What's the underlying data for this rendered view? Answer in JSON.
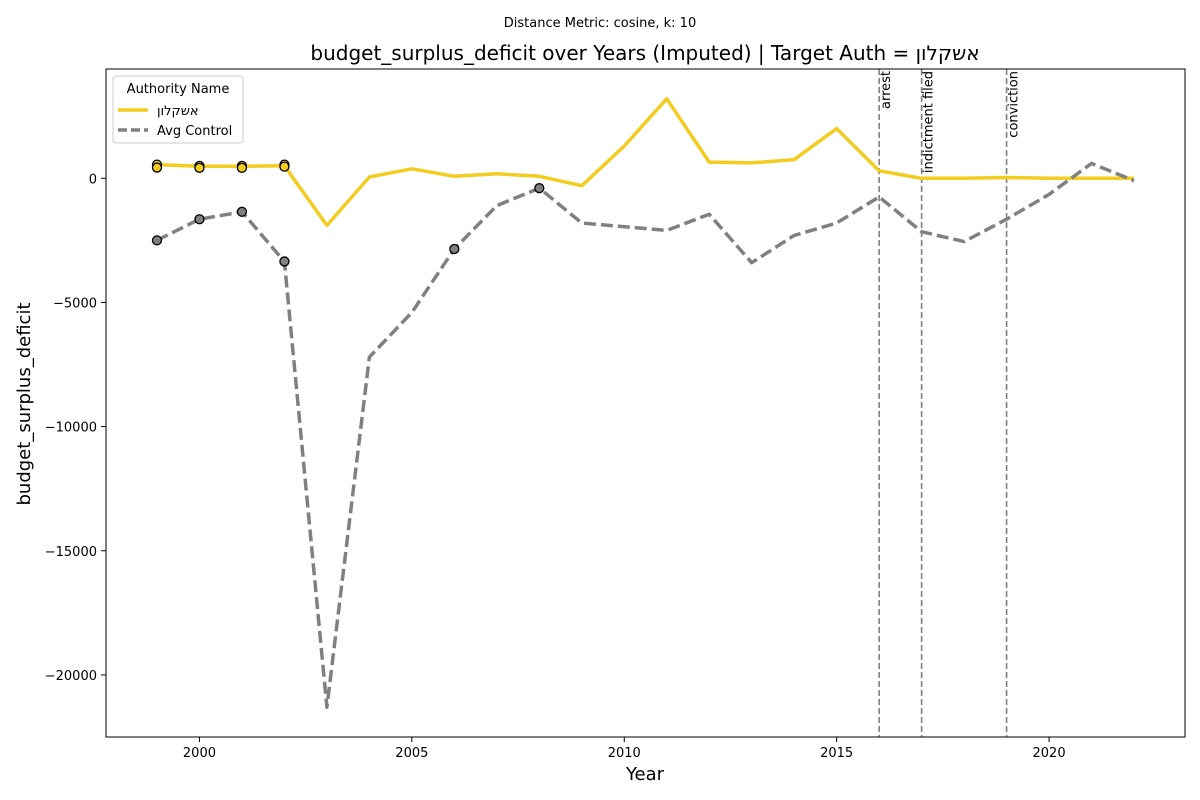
{
  "chart_data": {
    "type": "line",
    "supertitle": "Distance Metric: cosine, k: 10",
    "title": "budget_surplus_deficit over Years (Imputed) | Target Auth = אשקלון",
    "xlabel": "Year",
    "ylabel": "budget_surplus_deficit",
    "xlim": [
      1997.8,
      2023.2
    ],
    "ylim": [
      -22500,
      4400
    ],
    "x_ticks": [
      2000,
      2005,
      2010,
      2015,
      2020
    ],
    "y_ticks": [
      -20000,
      -15000,
      -10000,
      -5000,
      0
    ],
    "y_tick_labels": [
      "−20000",
      "−15000",
      "−10000",
      "−5000",
      "0"
    ],
    "grid": false,
    "legend": {
      "title": "Authority Name",
      "placement": "upper-left"
    },
    "series": [
      {
        "name": "אשקלון",
        "color": "#f2cc1f",
        "style": "solid",
        "x": [
          1999,
          2000,
          2001,
          2002,
          2003,
          2004,
          2005,
          2006,
          2007,
          2008,
          2009,
          2010,
          2011,
          2012,
          2013,
          2014,
          2015,
          2016,
          2017,
          2018,
          2019,
          2020,
          2021,
          2022
        ],
        "y": [
          550,
          480,
          480,
          500,
          -1900,
          50,
          380,
          80,
          180,
          80,
          -300,
          1300,
          3200,
          650,
          620,
          750,
          2000,
          300,
          0,
          0,
          30,
          0,
          0,
          0
        ]
      },
      {
        "name": "Avg Control",
        "color": "#808080",
        "style": "dashed",
        "x": [
          1999,
          2000,
          2001,
          2002,
          2003,
          2004,
          2005,
          2006,
          2007,
          2008,
          2009,
          2010,
          2011,
          2012,
          2013,
          2014,
          2015,
          2016,
          2017,
          2018,
          2019,
          2020,
          2021,
          2022
        ],
        "y": [
          -2500,
          -1650,
          -1350,
          -3350,
          -21300,
          -7200,
          -5400,
          -2850,
          -1100,
          -400,
          -1800,
          -1950,
          -2100,
          -1450,
          -3400,
          -2300,
          -1800,
          -750,
          -2150,
          -2550,
          -1650,
          -650,
          600,
          -100
        ]
      }
    ],
    "observed_points": [
      {
        "series": "אשקלון",
        "x": [
          1999,
          1999,
          2000,
          2000,
          2001,
          2001,
          2002,
          2002
        ],
        "y": [
          550,
          430,
          500,
          420,
          500,
          420,
          550,
          470
        ],
        "color": "#f2cc1f"
      },
      {
        "series": "Avg Control",
        "x": [
          1999,
          2000,
          2001,
          2002,
          2006,
          2008
        ],
        "y": [
          -2500,
          -1650,
          -1350,
          -3350,
          -2850,
          -400
        ],
        "color": "#808080"
      }
    ],
    "events": [
      {
        "x": 2016,
        "label": "arrest"
      },
      {
        "x": 2017,
        "label": "indictment filed"
      },
      {
        "x": 2019,
        "label": "conviction"
      }
    ]
  }
}
